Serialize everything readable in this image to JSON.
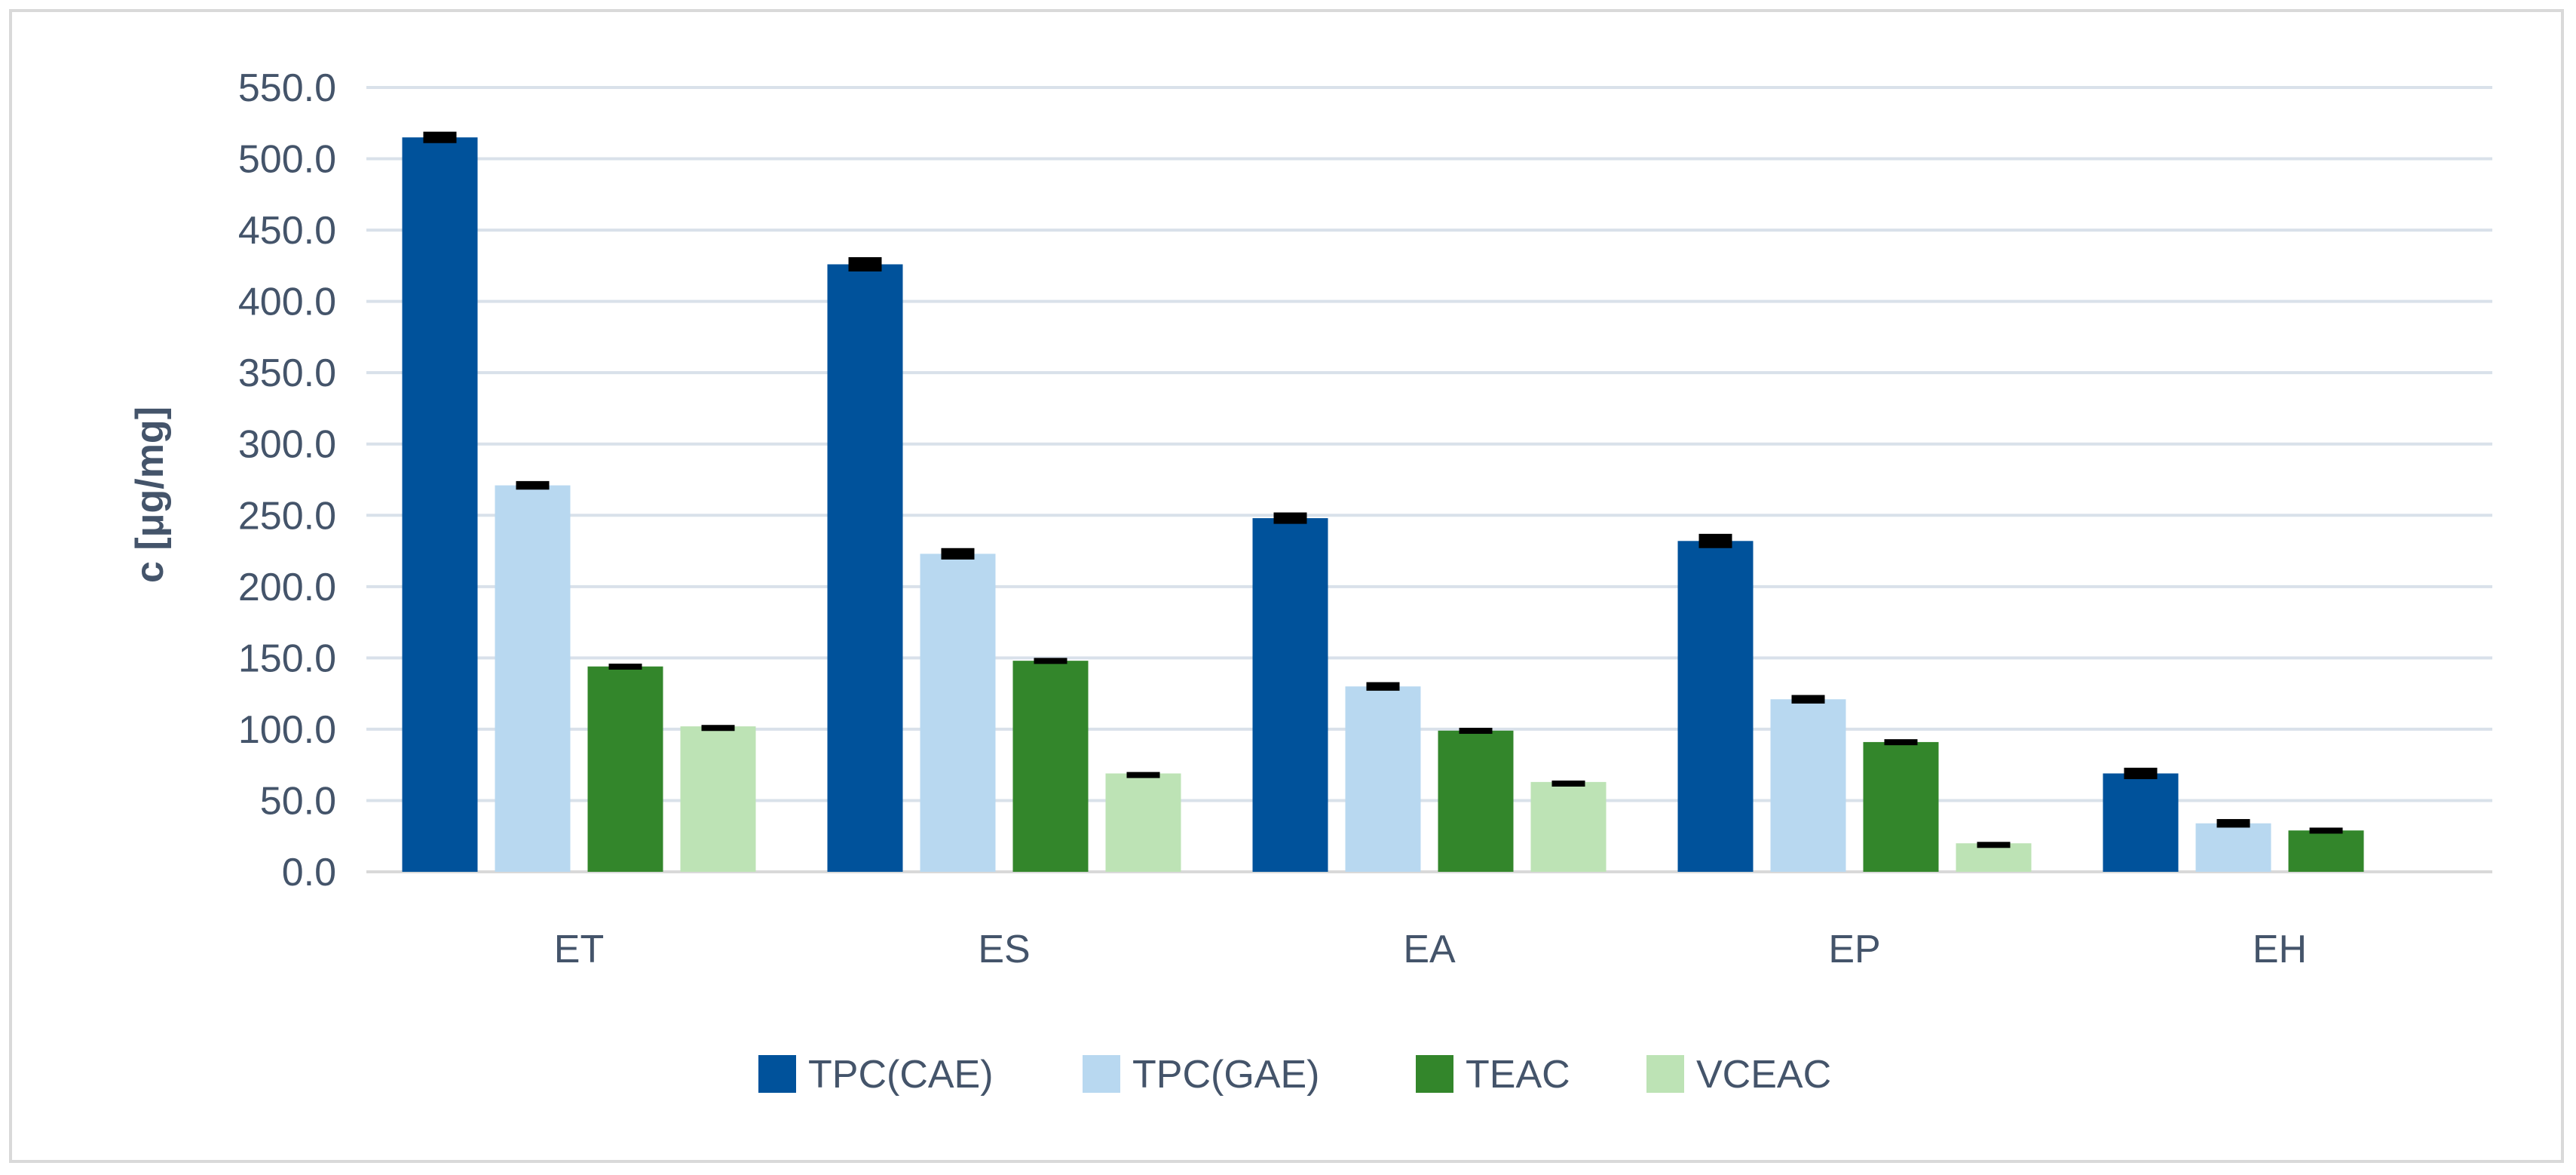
{
  "chart_data": {
    "type": "bar",
    "title": "",
    "xlabel": "",
    "ylabel": "c [μg/mg]",
    "ylim": [
      0,
      550
    ],
    "ytick_step": 50,
    "ytick_format_decimals": 1,
    "grid": true,
    "legend_position": "bottom",
    "categories": [
      "ET",
      "ES",
      "EA",
      "EP",
      "EH"
    ],
    "series": [
      {
        "name": "TPC(CAE)",
        "color": "#00529b",
        "values": [
          515,
          426,
          248,
          232,
          69
        ],
        "errors": [
          4,
          5,
          4,
          5,
          4
        ]
      },
      {
        "name": "TPC(GAE)",
        "color": "#b8d8f0",
        "values": [
          271,
          223,
          130,
          121,
          34
        ],
        "errors": [
          3,
          4,
          3,
          3,
          3
        ]
      },
      {
        "name": "TEAC",
        "color": "#33862b",
        "values": [
          144,
          148,
          99,
          91,
          29
        ],
        "errors": [
          2,
          2,
          2,
          2,
          2
        ]
      },
      {
        "name": "VCEAC",
        "color": "#bde3b5",
        "values": [
          102,
          69,
          63,
          20,
          null
        ],
        "errors": [
          1,
          1,
          1,
          1,
          null
        ]
      }
    ],
    "error_bar_color": "#000000",
    "gridline_color": "#d9e1ea",
    "axis_line_color": "#d9d9d9",
    "text_color": "#44546a"
  }
}
